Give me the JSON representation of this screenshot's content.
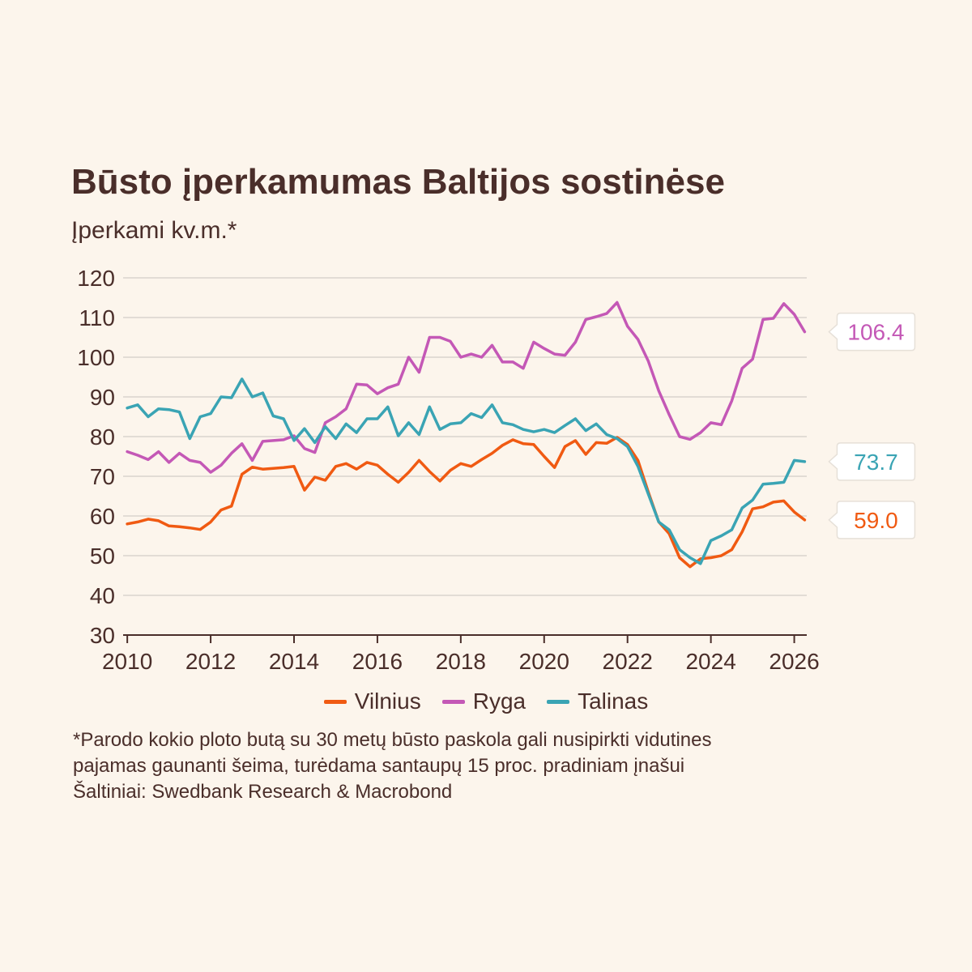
{
  "title": "Būsto įperkamumas Baltijos sostinėse",
  "subtitle": "Įperkami kv.m.*",
  "footnote": {
    "line1": "*Parodo kokio ploto butą su 30 metų būsto paskola gali nusipirkti vidutines",
    "line2": "pajamas gaunanti šeima, turėdama santaupų 15 proc. pradiniam įnašui",
    "line3": "Šaltiniai: Swedbank Research & Macrobond"
  },
  "colors": {
    "background": "#fcf5ec",
    "grid": "#d9d4cd",
    "axis": "#4a2e2a",
    "text": "#4a2e2a"
  },
  "chart_data": {
    "type": "line",
    "title": "Būsto įperkamumas Baltijos sostinėse",
    "ylabel": "Įperkami kv.m.*",
    "xlabel": "",
    "xlim": [
      2009.9,
      2026.3
    ],
    "ylim": [
      30,
      120
    ],
    "yticks": [
      30,
      40,
      50,
      60,
      70,
      80,
      90,
      100,
      110,
      120
    ],
    "xticks": [
      2010,
      2012,
      2014,
      2016,
      2018,
      2020,
      2022,
      2024,
      2026
    ],
    "grid": true,
    "legend_position": "bottom",
    "series": [
      {
        "name": "Vilnius",
        "color": "#f05a12",
        "end_label": "59.0",
        "points": [
          [
            2010.0,
            58.0
          ],
          [
            2010.25,
            58.5
          ],
          [
            2010.5,
            59.2
          ],
          [
            2010.75,
            58.8
          ],
          [
            2011.0,
            57.5
          ],
          [
            2011.25,
            57.3
          ],
          [
            2011.5,
            57.0
          ],
          [
            2011.75,
            56.6
          ],
          [
            2012.0,
            58.5
          ],
          [
            2012.25,
            61.5
          ],
          [
            2012.5,
            62.5
          ],
          [
            2012.75,
            70.5
          ],
          [
            2013.0,
            72.3
          ],
          [
            2013.25,
            71.8
          ],
          [
            2013.5,
            72.0
          ],
          [
            2013.75,
            72.2
          ],
          [
            2014.0,
            72.5
          ],
          [
            2014.25,
            66.5
          ],
          [
            2014.5,
            69.8
          ],
          [
            2014.75,
            69.0
          ],
          [
            2015.0,
            72.5
          ],
          [
            2015.25,
            73.2
          ],
          [
            2015.5,
            71.8
          ],
          [
            2015.75,
            73.5
          ],
          [
            2016.0,
            72.8
          ],
          [
            2016.25,
            70.5
          ],
          [
            2016.5,
            68.5
          ],
          [
            2016.75,
            71.0
          ],
          [
            2017.0,
            74.0
          ],
          [
            2017.25,
            71.2
          ],
          [
            2017.5,
            68.8
          ],
          [
            2017.75,
            71.5
          ],
          [
            2018.0,
            73.2
          ],
          [
            2018.25,
            72.5
          ],
          [
            2018.5,
            74.2
          ],
          [
            2018.75,
            75.8
          ],
          [
            2019.0,
            77.8
          ],
          [
            2019.25,
            79.2
          ],
          [
            2019.5,
            78.2
          ],
          [
            2019.75,
            78.0
          ],
          [
            2020.0,
            75.0
          ],
          [
            2020.25,
            72.2
          ],
          [
            2020.5,
            77.5
          ],
          [
            2020.75,
            79.0
          ],
          [
            2021.0,
            75.5
          ],
          [
            2021.25,
            78.5
          ],
          [
            2021.5,
            78.3
          ],
          [
            2021.75,
            79.8
          ],
          [
            2022.0,
            78.0
          ],
          [
            2022.25,
            74.0
          ],
          [
            2022.5,
            66.0
          ],
          [
            2022.75,
            58.5
          ],
          [
            2023.0,
            55.5
          ],
          [
            2023.25,
            49.5
          ],
          [
            2023.5,
            47.2
          ],
          [
            2023.75,
            49.2
          ],
          [
            2024.0,
            49.5
          ],
          [
            2024.25,
            50.0
          ],
          [
            2024.5,
            51.5
          ],
          [
            2024.75,
            56.0
          ],
          [
            2025.0,
            61.8
          ],
          [
            2025.25,
            62.3
          ],
          [
            2025.5,
            63.5
          ],
          [
            2025.75,
            63.8
          ],
          [
            2026.0,
            61.0
          ],
          [
            2026.25,
            59.0
          ]
        ]
      },
      {
        "name": "Ryga",
        "color": "#c458b6",
        "end_label": "106.4",
        "points": [
          [
            2010.0,
            76.2
          ],
          [
            2010.25,
            75.3
          ],
          [
            2010.5,
            74.2
          ],
          [
            2010.75,
            76.2
          ],
          [
            2011.0,
            73.5
          ],
          [
            2011.25,
            75.8
          ],
          [
            2011.5,
            74.0
          ],
          [
            2011.75,
            73.5
          ],
          [
            2012.0,
            71.0
          ],
          [
            2012.25,
            72.8
          ],
          [
            2012.5,
            75.8
          ],
          [
            2012.75,
            78.2
          ],
          [
            2013.0,
            74.0
          ],
          [
            2013.25,
            78.8
          ],
          [
            2013.5,
            79.0
          ],
          [
            2013.75,
            79.2
          ],
          [
            2014.0,
            80.2
          ],
          [
            2014.25,
            77.0
          ],
          [
            2014.5,
            76.0
          ],
          [
            2014.75,
            83.5
          ],
          [
            2015.0,
            85.0
          ],
          [
            2015.25,
            87.0
          ],
          [
            2015.5,
            93.2
          ],
          [
            2015.75,
            93.0
          ],
          [
            2016.0,
            90.8
          ],
          [
            2016.25,
            92.3
          ],
          [
            2016.5,
            93.2
          ],
          [
            2016.75,
            100.0
          ],
          [
            2017.0,
            96.2
          ],
          [
            2017.25,
            105.0
          ],
          [
            2017.5,
            105.0
          ],
          [
            2017.75,
            104.0
          ],
          [
            2018.0,
            100.0
          ],
          [
            2018.25,
            100.8
          ],
          [
            2018.5,
            100.0
          ],
          [
            2018.75,
            103.0
          ],
          [
            2019.0,
            98.8
          ],
          [
            2019.25,
            98.8
          ],
          [
            2019.5,
            97.2
          ],
          [
            2019.75,
            103.8
          ],
          [
            2020.0,
            102.2
          ],
          [
            2020.25,
            100.8
          ],
          [
            2020.5,
            100.5
          ],
          [
            2020.75,
            103.8
          ],
          [
            2021.0,
            109.5
          ],
          [
            2021.25,
            110.2
          ],
          [
            2021.5,
            111.0
          ],
          [
            2021.75,
            113.8
          ],
          [
            2022.0,
            107.8
          ],
          [
            2022.25,
            104.5
          ],
          [
            2022.5,
            99.0
          ],
          [
            2022.75,
            91.5
          ],
          [
            2023.0,
            85.5
          ],
          [
            2023.25,
            80.0
          ],
          [
            2023.5,
            79.3
          ],
          [
            2023.75,
            81.0
          ],
          [
            2024.0,
            83.5
          ],
          [
            2024.25,
            83.0
          ],
          [
            2024.5,
            89.0
          ],
          [
            2024.75,
            97.2
          ],
          [
            2025.0,
            99.5
          ],
          [
            2025.25,
            109.5
          ],
          [
            2025.5,
            109.8
          ],
          [
            2025.75,
            113.5
          ],
          [
            2026.0,
            110.8
          ],
          [
            2026.25,
            106.4
          ]
        ]
      },
      {
        "name": "Talinas",
        "color": "#3aa4b4",
        "end_label": "73.7",
        "points": [
          [
            2010.0,
            87.2
          ],
          [
            2010.25,
            88.0
          ],
          [
            2010.5,
            85.0
          ],
          [
            2010.75,
            87.0
          ],
          [
            2011.0,
            86.8
          ],
          [
            2011.25,
            86.2
          ],
          [
            2011.5,
            79.5
          ],
          [
            2011.75,
            85.0
          ],
          [
            2012.0,
            85.8
          ],
          [
            2012.25,
            90.0
          ],
          [
            2012.5,
            89.8
          ],
          [
            2012.75,
            94.5
          ],
          [
            2013.0,
            90.0
          ],
          [
            2013.25,
            91.0
          ],
          [
            2013.5,
            85.2
          ],
          [
            2013.75,
            84.5
          ],
          [
            2014.0,
            79.0
          ],
          [
            2014.25,
            82.0
          ],
          [
            2014.5,
            78.5
          ],
          [
            2014.75,
            82.5
          ],
          [
            2015.0,
            79.5
          ],
          [
            2015.25,
            83.2
          ],
          [
            2015.5,
            81.0
          ],
          [
            2015.75,
            84.5
          ],
          [
            2016.0,
            84.5
          ],
          [
            2016.25,
            87.5
          ],
          [
            2016.5,
            80.2
          ],
          [
            2016.75,
            83.5
          ],
          [
            2017.0,
            80.5
          ],
          [
            2017.25,
            87.5
          ],
          [
            2017.5,
            81.8
          ],
          [
            2017.75,
            83.2
          ],
          [
            2018.0,
            83.5
          ],
          [
            2018.25,
            85.8
          ],
          [
            2018.5,
            84.8
          ],
          [
            2018.75,
            88.0
          ],
          [
            2019.0,
            83.5
          ],
          [
            2019.25,
            83.0
          ],
          [
            2019.5,
            81.8
          ],
          [
            2019.75,
            81.2
          ],
          [
            2020.0,
            81.8
          ],
          [
            2020.25,
            81.0
          ],
          [
            2020.5,
            82.8
          ],
          [
            2020.75,
            84.5
          ],
          [
            2021.0,
            81.5
          ],
          [
            2021.25,
            83.2
          ],
          [
            2021.5,
            80.5
          ],
          [
            2021.75,
            79.5
          ],
          [
            2022.0,
            77.5
          ],
          [
            2022.25,
            72.5
          ],
          [
            2022.5,
            65.5
          ],
          [
            2022.75,
            58.5
          ],
          [
            2023.0,
            56.5
          ],
          [
            2023.25,
            51.5
          ],
          [
            2023.5,
            49.5
          ],
          [
            2023.75,
            48.0
          ],
          [
            2024.0,
            53.8
          ],
          [
            2024.25,
            55.0
          ],
          [
            2024.5,
            56.5
          ],
          [
            2024.75,
            62.0
          ],
          [
            2025.0,
            64.0
          ],
          [
            2025.25,
            68.0
          ],
          [
            2025.5,
            68.2
          ],
          [
            2025.75,
            68.5
          ],
          [
            2026.0,
            74.0
          ],
          [
            2026.25,
            73.7
          ]
        ]
      }
    ]
  }
}
